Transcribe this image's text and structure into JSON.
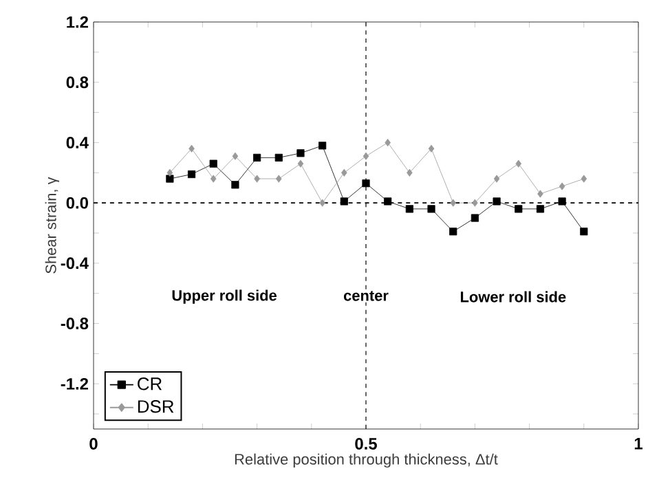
{
  "chart_data": {
    "type": "line",
    "xlabel": "Relative position through thickness, Δt/t",
    "ylabel": "Shear strain, γ",
    "x": [
      0.14,
      0.18,
      0.22,
      0.26,
      0.3,
      0.34,
      0.38,
      0.42,
      0.46,
      0.5,
      0.54,
      0.58,
      0.62,
      0.66,
      0.7,
      0.74,
      0.78,
      0.82,
      0.86,
      0.9
    ],
    "series": [
      {
        "name": "CR",
        "color": "#000000",
        "marker": "square",
        "values": [
          0.16,
          0.19,
          0.26,
          0.12,
          0.3,
          0.3,
          0.33,
          0.38,
          0.01,
          0.13,
          0.01,
          -0.04,
          -0.04,
          -0.19,
          -0.1,
          0.01,
          -0.04,
          -0.04,
          0.01,
          -0.19
        ]
      },
      {
        "name": "DSR",
        "color": "#999999",
        "marker": "diamond",
        "values": [
          0.2,
          0.36,
          0.16,
          0.31,
          0.16,
          0.16,
          0.26,
          0.0,
          0.2,
          0.31,
          0.4,
          0.2,
          0.36,
          0.0,
          0.0,
          0.16,
          0.26,
          0.06,
          0.11,
          0.16
        ]
      }
    ],
    "xlim": [
      0,
      1
    ],
    "ylim": [
      -1.5,
      1.2
    ],
    "xticks": [
      0,
      {
        "value": 0.1,
        "label": null
      },
      {
        "value": 0.2,
        "label": null
      },
      {
        "value": 0.3,
        "label": null
      },
      {
        "value": 0.4,
        "label": null
      },
      0.5,
      {
        "value": 0.6,
        "label": null
      },
      {
        "value": 0.7,
        "label": null
      },
      {
        "value": 0.8,
        "label": null
      },
      {
        "value": 0.9,
        "label": null
      },
      1
    ],
    "yticks": [
      {
        "value": -1.4,
        "label": null
      },
      -1.2,
      {
        "value": -1.0,
        "label": null
      },
      -0.8,
      {
        "value": -0.6,
        "label": null
      },
      -0.4,
      {
        "value": -0.2,
        "label": null
      },
      {
        "value": 0,
        "label": "0.0"
      },
      {
        "value": 0.2,
        "label": null
      },
      0.4,
      {
        "value": 0.6,
        "label": null
      },
      0.8,
      {
        "value": 1.0,
        "label": null
      },
      1.2
    ],
    "ref_lines": [
      {
        "axis": "y",
        "value": 0,
        "line_style": "dashed"
      },
      {
        "axis": "x",
        "value": 0.5,
        "line_style": "dashed"
      }
    ],
    "annotations": [
      "Upper roll side",
      "center",
      "Lower roll side"
    ],
    "legend": "bottom left",
    "grid": false,
    "line_style": "solid"
  }
}
